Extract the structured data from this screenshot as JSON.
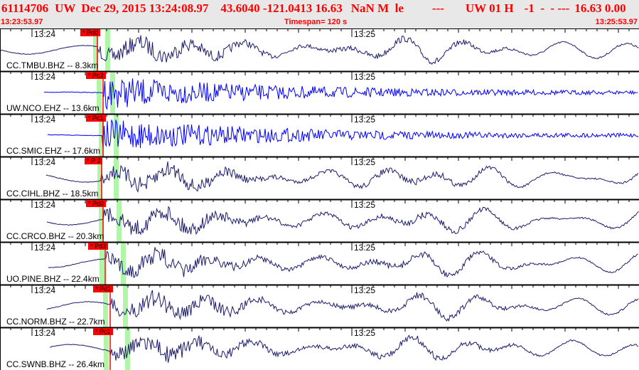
{
  "header": {
    "event_id": "61114706",
    "network": "UW",
    "datetime": "Dec 29, 2015 13:24:08.97",
    "location": "43.6040 -121.0413 16.63",
    "magnitude": "NaN M  le",
    "dashes": "---",
    "source": "UW 01 H",
    "quality": "-1  -  - ---",
    "depth_err": "16.63 0.00",
    "start_time": "13:23:53.97",
    "timespan": "Timespan= 120 s",
    "end_time": "13:25:53.97"
  },
  "colors": {
    "header_text": "#ff0000",
    "bh_trace": "#1c1c6e",
    "eh_trace": "#0000ff",
    "pick": "#ff0000",
    "theoretical": "#b0f5a8"
  },
  "time_labels": [
    "13:24",
    "13:25"
  ],
  "channels": [
    {
      "label": "CC.TMBU.BHZ -- 8.3km",
      "pick": "* Pd0",
      "type": "BH"
    },
    {
      "label": "UW.NCO.EHZ -- 13.6km",
      "pick": "* Pc2",
      "type": "EH"
    },
    {
      "label": "CC.SMIC.EHZ -- 17.6km",
      "pick": "* Pc1",
      "type": "EH"
    },
    {
      "label": "CC.CIHL.BHZ -- 18.5km",
      "pick": "* P 2",
      "type": "BH"
    },
    {
      "label": "CC.CRCO.BHZ -- 20.3km",
      "pick": "* Pd0",
      "type": "BH"
    },
    {
      "label": "UO.PINE.BHZ -- 22.4km",
      "pick": "* Pd3",
      "type": "BH"
    },
    {
      "label": "CC.NORM.BHZ -- 22.7km",
      "pick": "* Pd1",
      "type": "BH"
    },
    {
      "label": "CC.SWNB.BHZ -- 26.4km",
      "pick": "* Pc1",
      "type": "BH"
    }
  ]
}
